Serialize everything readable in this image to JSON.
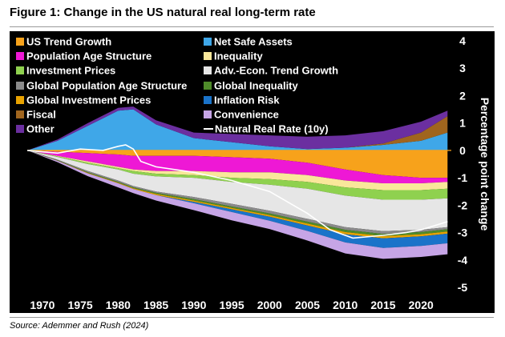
{
  "figure": {
    "title": "Figure 1: Change in the US natural real long-term rate",
    "source": "Source: Ademmer and Rush (2024)"
  },
  "chart_data": {
    "type": "area",
    "title": "Figure 1: Change in the US natural real long-term rate",
    "xlabel": "",
    "ylabel": "Percentage point change",
    "xlim": [
      1968,
      2024
    ],
    "ylim": [
      -5,
      4
    ],
    "grid": false,
    "legend_position": "top-left, three columns",
    "x_ticks": [
      1970,
      1975,
      1980,
      1985,
      1990,
      1995,
      2000,
      2005,
      2010,
      2015,
      2020
    ],
    "y_ticks": [
      4,
      3,
      2,
      1,
      0,
      -1,
      -2,
      -3,
      -4,
      -5
    ],
    "x": [
      1968,
      1972,
      1976,
      1980,
      1982,
      1985,
      1990,
      1995,
      2000,
      2005,
      2010,
      2015,
      2020,
      2023.5
    ],
    "positive_series": [
      {
        "name": "Net Safe Assets",
        "color": "#3fa7e8",
        "values": [
          0,
          0.35,
          0.9,
          1.45,
          1.5,
          0.95,
          0.45,
          0.3,
          0.15,
          0.05,
          0.1,
          0.2,
          0.35,
          0.65
        ]
      },
      {
        "name": "Fiscal",
        "color": "#a0651e",
        "values": [
          0,
          0,
          0,
          0,
          0,
          0,
          0,
          0,
          0,
          0,
          0,
          0.05,
          0.3,
          0.6
        ]
      },
      {
        "name": "Other",
        "color": "#6b2fa0",
        "values": [
          0,
          0.05,
          0.1,
          0.1,
          0.1,
          0.15,
          0.2,
          0.3,
          0.4,
          0.45,
          0.45,
          0.45,
          0.4,
          0.2
        ]
      }
    ],
    "negative_series": [
      {
        "name": "US Trend Growth",
        "color": "#f7a21b",
        "values": [
          0,
          -0.05,
          -0.1,
          -0.15,
          -0.2,
          -0.2,
          -0.2,
          -0.25,
          -0.3,
          -0.45,
          -0.7,
          -0.9,
          -1.0,
          -1.0
        ]
      },
      {
        "name": "Population Age Structure",
        "color": "#ee18d5",
        "values": [
          0,
          -0.15,
          -0.3,
          -0.45,
          -0.5,
          -0.55,
          -0.55,
          -0.55,
          -0.5,
          -0.45,
          -0.4,
          -0.3,
          -0.2,
          -0.15
        ]
      },
      {
        "name": "Inequality",
        "color": "#f9e79a",
        "values": [
          0,
          -0.02,
          -0.05,
          -0.05,
          -0.05,
          -0.1,
          -0.15,
          -0.2,
          -0.25,
          -0.25,
          -0.25,
          -0.25,
          -0.25,
          -0.25
        ]
      },
      {
        "name": "Investment Prices",
        "color": "#8fd14f",
        "values": [
          0,
          -0.02,
          -0.05,
          -0.05,
          -0.1,
          -0.1,
          -0.1,
          -0.15,
          -0.2,
          -0.25,
          -0.3,
          -0.35,
          -0.35,
          -0.35
        ]
      },
      {
        "name": "Adv.-Econ. Trend Growth",
        "color": "#e6e6e6",
        "values": [
          0,
          -0.1,
          -0.25,
          -0.4,
          -0.45,
          -0.55,
          -0.7,
          -0.8,
          -0.95,
          -1.1,
          -1.15,
          -1.15,
          -1.1,
          -1.05
        ]
      },
      {
        "name": "Global Population Age Structure",
        "color": "#8a8a8a",
        "values": [
          0,
          -0.02,
          -0.05,
          -0.05,
          -0.05,
          -0.05,
          -0.08,
          -0.1,
          -0.1,
          -0.1,
          -0.1,
          -0.1,
          -0.08,
          -0.08
        ]
      },
      {
        "name": "Global Inequality",
        "color": "#4f8b2a",
        "values": [
          0,
          -0.01,
          -0.02,
          -0.03,
          -0.03,
          -0.04,
          -0.05,
          -0.05,
          -0.06,
          -0.07,
          -0.08,
          -0.08,
          -0.08,
          -0.08
        ]
      },
      {
        "name": "Global Investment Prices",
        "color": "#e8a200",
        "values": [
          0,
          -0.01,
          -0.02,
          -0.02,
          -0.03,
          -0.04,
          -0.05,
          -0.05,
          -0.06,
          -0.07,
          -0.08,
          -0.08,
          -0.08,
          -0.08
        ]
      },
      {
        "name": "Inflation Risk",
        "color": "#1a73c9",
        "values": [
          0,
          0,
          0,
          0,
          0,
          0,
          -0.05,
          -0.1,
          -0.15,
          -0.2,
          -0.3,
          -0.35,
          -0.35,
          -0.35
        ]
      },
      {
        "name": "Convenience",
        "color": "#c6a5e6",
        "values": [
          0,
          -0.05,
          -0.1,
          -0.15,
          -0.15,
          -0.2,
          -0.25,
          -0.3,
          -0.3,
          -0.35,
          -0.4,
          -0.4,
          -0.4,
          -0.4
        ]
      }
    ],
    "line_series": {
      "name": "Natural Real Rate (10y)",
      "color": "#ffffff",
      "x": [
        1968,
        1972,
        1975,
        1978,
        1980,
        1981,
        1982,
        1983,
        1985,
        1990,
        1995,
        2000,
        2005,
        2008,
        2011,
        2015,
        2018,
        2020,
        2023.5
      ],
      "values": [
        0,
        -0.1,
        0.05,
        0.0,
        0.15,
        0.2,
        0.05,
        -0.4,
        -0.6,
        -0.8,
        -1.1,
        -1.5,
        -2.3,
        -2.9,
        -3.2,
        -3.1,
        -3.0,
        -2.9,
        -2.6
      ]
    },
    "legend": [
      {
        "label": "US Trend Growth",
        "color": "#f7a21b"
      },
      {
        "label": "Net Safe Assets",
        "color": "#3fa7e8"
      },
      {
        "label": "Population Age Structure",
        "color": "#ee18d5"
      },
      {
        "label": "Inequality",
        "color": "#f9e79a"
      },
      {
        "label": "Investment Prices",
        "color": "#8fd14f"
      },
      {
        "label": "Adv.-Econ. Trend Growth",
        "color": "#e6e6e6"
      },
      {
        "label": "Global Population Age Structure",
        "color": "#8a8a8a"
      },
      {
        "label": "Global Inequality",
        "color": "#4f8b2a"
      },
      {
        "label": "Global Investment Prices",
        "color": "#e8a200"
      },
      {
        "label": "Inflation Risk",
        "color": "#1a73c9"
      },
      {
        "label": "Fiscal",
        "color": "#a0651e"
      },
      {
        "label": "Convenience",
        "color": "#c6a5e6"
      },
      {
        "label": "Other",
        "color": "#6b2fa0"
      },
      {
        "label": "Natural Real Rate (10y)",
        "color": "#ffffff",
        "kind": "line"
      }
    ]
  }
}
